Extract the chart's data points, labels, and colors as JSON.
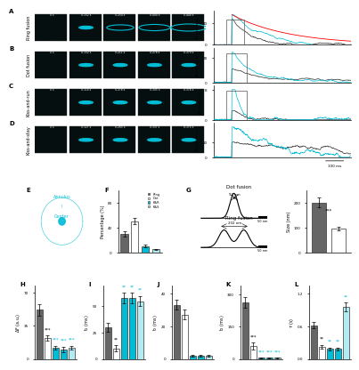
{
  "panel_labels": [
    "A",
    "B",
    "C",
    "D",
    "E",
    "F",
    "G",
    "H",
    "I",
    "J",
    "K",
    "L"
  ],
  "fusion_types": [
    "Ring fusion",
    "Dot fusion",
    "Kiss-and-run",
    "Kiss-and-stay"
  ],
  "image_times": [
    [
      "0 s",
      "0.152 s",
      "0.254 s",
      "0.400 s",
      "0.440 s"
    ],
    [
      "0 s",
      "0.152 s",
      "0.211 s",
      "0.278 s",
      "0.379 s"
    ],
    [
      "0 s",
      "0.114 s",
      "0.278 s",
      "0.305 s",
      "0.376 s"
    ],
    [
      "0 s",
      "0.127 s",
      "0.265 s",
      "0.337 s",
      "0.375 s"
    ]
  ],
  "bar_colors_F": [
    "#666666",
    "#ffffff",
    "#00bcd4",
    "#b2ebf2"
  ],
  "bar_values_F": [
    30,
    50,
    10,
    5
  ],
  "bar_errors_F": [
    4,
    5,
    2,
    1
  ],
  "legend_labels_F": [
    "Ring",
    "Dot",
    "K&R",
    "K&S"
  ],
  "size_values": [
    200,
    95
  ],
  "size_errors": [
    20,
    8
  ],
  "size_colors": [
    "#666666",
    "#ffffff"
  ],
  "bar_H": [
    52,
    22,
    12,
    10,
    12
  ],
  "bar_H_err": [
    6,
    3,
    2,
    3,
    2
  ],
  "bar_H_colors": [
    "#666666",
    "#ffffff",
    "#00bcd4",
    "#00bcd4",
    "#b2ebf2"
  ],
  "bar_I": [
    30,
    10,
    58,
    58,
    55
  ],
  "bar_I_err": [
    4,
    3,
    5,
    5,
    5
  ],
  "bar_I_colors": [
    "#666666",
    "#ffffff",
    "#00bcd4",
    "#00bcd4",
    "#b2ebf2"
  ],
  "bar_J": [
    33,
    27,
    2,
    2,
    2
  ],
  "bar_J_err": [
    3,
    3,
    0.5,
    0.5,
    0.5
  ],
  "bar_J_colors": [
    "#666666",
    "#ffffff",
    "#00bcd4",
    "#00bcd4",
    "#b2ebf2"
  ],
  "bar_K": [
    260,
    60,
    5,
    5,
    5
  ],
  "bar_K_err": [
    25,
    15,
    1,
    1,
    1
  ],
  "bar_K_colors": [
    "#666666",
    "#ffffff",
    "#00bcd4",
    "#00bcd4",
    "#b2ebf2"
  ],
  "bar_L": [
    0.62,
    0.22,
    0.18,
    0.18,
    0.95
  ],
  "bar_L_err": [
    0.06,
    0.04,
    0.03,
    0.03,
    0.08
  ],
  "bar_L_colors": [
    "#666666",
    "#ffffff",
    "#00bcd4",
    "#00bcd4",
    "#b2ebf2"
  ],
  "cyan_color": "#00bcd4",
  "dark_color": "#333333"
}
